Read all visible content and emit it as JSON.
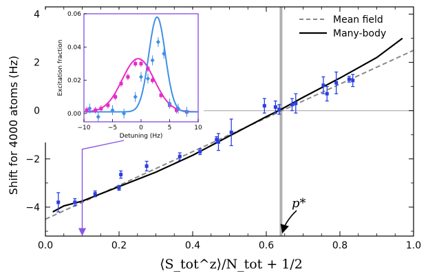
{
  "chart_data": [
    {
      "id": "main",
      "type": "line+scatter",
      "xlabel": "⟨S_tot^z⟩/N_tot + 1/2",
      "ylabel": "Shift for 4000 atoms (Hz)",
      "xlim": [
        0.0,
        1.0
      ],
      "ylim": [
        -5.2,
        4.3
      ],
      "xticks": [
        0.0,
        0.2,
        0.4,
        0.6,
        0.8,
        1.0
      ],
      "xtick_labels": [
        "0.0",
        "0.2",
        "0.4",
        "0.6",
        "0.8",
        "1.0"
      ],
      "yticks": [
        -4,
        -2,
        0,
        2,
        4
      ],
      "ytick_labels": [
        "−4",
        "−2",
        "0",
        "2",
        "4"
      ],
      "zero_line": 0,
      "vline_x": 0.64,
      "annotation": {
        "text": "p*",
        "x": 0.64,
        "y": -4.6
      },
      "inset_marker_x": 0.1,
      "legend": [
        {
          "name": "Mean field",
          "style": "dashed",
          "color": "#888888"
        },
        {
          "name": "Many-body",
          "style": "solid",
          "color": "#000000"
        }
      ],
      "series": [
        {
          "name": "Mean field",
          "x": [
            0.0,
            1.0
          ],
          "y": [
            -4.5,
            2.5
          ]
        },
        {
          "name": "Many-body",
          "x": [
            0.02,
            0.05,
            0.1,
            0.2,
            0.3,
            0.4,
            0.5,
            0.6,
            0.64,
            0.7,
            0.8,
            0.9,
            0.97
          ],
          "y": [
            -4.2,
            -3.95,
            -3.75,
            -3.15,
            -2.55,
            -1.85,
            -1.05,
            -0.25,
            0.05,
            0.55,
            1.35,
            2.2,
            3.0
          ]
        },
        {
          "name": "Data",
          "color": "#2a3ee0",
          "points": [
            {
              "x": 0.035,
              "y": -3.8,
              "err": 0.4
            },
            {
              "x": 0.08,
              "y": -3.8,
              "err": 0.15
            },
            {
              "x": 0.135,
              "y": -3.45,
              "err": 0.12
            },
            {
              "x": 0.2,
              "y": -3.2,
              "err": 0.1
            },
            {
              "x": 0.205,
              "y": -2.65,
              "err": 0.15
            },
            {
              "x": 0.275,
              "y": -2.3,
              "err": 0.2
            },
            {
              "x": 0.365,
              "y": -1.9,
              "err": 0.15
            },
            {
              "x": 0.42,
              "y": -1.7,
              "err": 0.12
            },
            {
              "x": 0.465,
              "y": -1.2,
              "err": 0.12
            },
            {
              "x": 0.47,
              "y": -1.3,
              "err": 0.35
            },
            {
              "x": 0.505,
              "y": -0.9,
              "err": 0.55
            },
            {
              "x": 0.595,
              "y": 0.2,
              "err": 0.3
            },
            {
              "x": 0.625,
              "y": 0.15,
              "err": 0.25
            },
            {
              "x": 0.635,
              "y": 0.05,
              "err": 0.2
            },
            {
              "x": 0.67,
              "y": 0.25,
              "err": 0.25
            },
            {
              "x": 0.68,
              "y": 0.3,
              "err": 0.4
            },
            {
              "x": 0.755,
              "y": 1.05,
              "err": 0.35
            },
            {
              "x": 0.765,
              "y": 0.7,
              "err": 0.3
            },
            {
              "x": 0.79,
              "y": 1.15,
              "err": 0.45
            },
            {
              "x": 0.825,
              "y": 1.3,
              "err": 0.12
            },
            {
              "x": 0.835,
              "y": 1.25,
              "err": 0.25
            }
          ]
        }
      ]
    },
    {
      "id": "inset",
      "type": "line+scatter",
      "xlabel": "Detuning (Hz)",
      "ylabel": "Excitation fraction",
      "xlim": [
        -10,
        10
      ],
      "ylim": [
        -0.005,
        0.06
      ],
      "xticks": [
        -10,
        -5,
        0,
        5,
        10
      ],
      "xtick_labels": [
        "−10",
        "−5",
        "0",
        "5",
        "10"
      ],
      "yticks": [
        0.0,
        0.02,
        0.04,
        0.06
      ],
      "ytick_labels": [
        "0.00",
        "0.02",
        "0.04",
        "0.06"
      ],
      "series": [
        {
          "name": "Fit magenta",
          "color": "#e62bc8",
          "curve": {
            "amp": 0.032,
            "center": -0.5,
            "sigma": 2.8,
            "offset": 0.001
          }
        },
        {
          "name": "Fit blue",
          "color": "#3f8fe6",
          "curve": {
            "amp": 0.057,
            "center": 2.8,
            "sigma": 1.45,
            "offset": 0.001
          }
        },
        {
          "name": "Magenta data",
          "color": "#e62bc8",
          "marker": "square",
          "points": [
            {
              "x": -9.5,
              "y": 0.002,
              "err": 0.002
            },
            {
              "x": -8,
              "y": 0.002,
              "err": 0.002
            },
            {
              "x": -7,
              "y": 0.003,
              "err": 0.002
            },
            {
              "x": -5.8,
              "y": 0.005,
              "err": 0.002
            },
            {
              "x": -4.5,
              "y": 0.01,
              "err": 0.002
            },
            {
              "x": -3.5,
              "y": 0.018,
              "err": 0.002
            },
            {
              "x": -2.3,
              "y": 0.022,
              "err": 0.002
            },
            {
              "x": -1,
              "y": 0.03,
              "err": 0.002
            },
            {
              "x": 0,
              "y": 0.03,
              "err": 0.002
            },
            {
              "x": 1.2,
              "y": 0.027,
              "err": 0.002
            },
            {
              "x": 2,
              "y": 0.02,
              "err": 0.002
            },
            {
              "x": 3.5,
              "y": 0.011,
              "err": 0.002
            },
            {
              "x": 5,
              "y": 0.005,
              "err": 0.002
            },
            {
              "x": 6.2,
              "y": 0.002,
              "err": 0.002
            },
            {
              "x": 8,
              "y": 0.001,
              "err": 0.002
            }
          ]
        },
        {
          "name": "Blue data",
          "color": "#3f8fe6",
          "marker": "diamond",
          "points": [
            {
              "x": -9,
              "y": 0.003,
              "err": 0.003
            },
            {
              "x": -7.5,
              "y": -0.002,
              "err": 0.003
            },
            {
              "x": -5,
              "y": 0.002,
              "err": 0.003
            },
            {
              "x": -3,
              "y": 0.0,
              "err": 0.003
            },
            {
              "x": -1,
              "y": 0.01,
              "err": 0.003
            },
            {
              "x": 0,
              "y": 0.022,
              "err": 0.003
            },
            {
              "x": 1.2,
              "y": 0.021,
              "err": 0.003
            },
            {
              "x": 2,
              "y": 0.032,
              "err": 0.003
            },
            {
              "x": 3,
              "y": 0.043,
              "err": 0.003
            },
            {
              "x": 4,
              "y": 0.036,
              "err": 0.003
            },
            {
              "x": 5,
              "y": 0.006,
              "err": 0.003
            },
            {
              "x": 6.5,
              "y": 0.003,
              "err": 0.003
            },
            {
              "x": 8,
              "y": 0.001,
              "err": 0.003
            }
          ]
        }
      ]
    }
  ],
  "colors": {
    "inset_frame": "#8a55e6",
    "arrow": "#8a55e6",
    "vline": "#b0b0b0",
    "zero_line": "#b3b3b3"
  }
}
